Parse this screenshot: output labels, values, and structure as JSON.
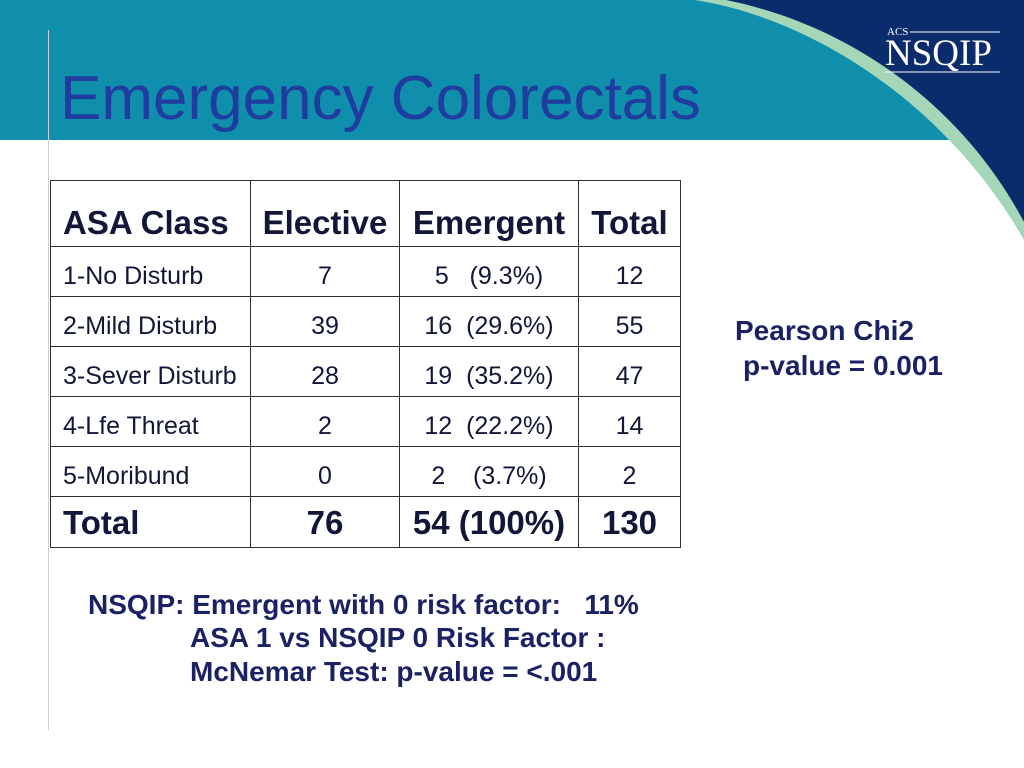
{
  "slide": {
    "title": "Emergency Colorectals"
  },
  "logo": {
    "org": "ACS",
    "name": "NSQIP"
  },
  "colors": {
    "header_band": "#0f8fac",
    "swoosh_navy": "#0b2c6c",
    "swoosh_mint": "#a5d6b8",
    "title": "#1f3c9e",
    "text": "#121638",
    "accent_text": "#1a2264"
  },
  "table": {
    "headers": {
      "asa": "ASA Class",
      "elective": "Elective",
      "emergent": "Emergent",
      "total": "Total"
    },
    "rows": [
      {
        "asa": "1-No Disturb",
        "elective": "7",
        "emergent": "5   (9.3%)",
        "total": "12"
      },
      {
        "asa": "2-Mild Disturb",
        "elective": "39",
        "emergent": "16  (29.6%)",
        "total": "55"
      },
      {
        "asa": "3-Sever Disturb",
        "elective": "28",
        "emergent": "19  (35.2%)",
        "total": "47"
      },
      {
        "asa": "4-Lfe Threat",
        "elective": "2",
        "emergent": "12  (22.2%)",
        "total": "14"
      },
      {
        "asa": "5-Moribund",
        "elective": "0",
        "emergent": "2    (3.7%)",
        "total": "2"
      }
    ],
    "totals": {
      "label": "Total",
      "elective": "76",
      "emergent": "54 (100%)",
      "total": "130"
    }
  },
  "stats": {
    "test": "Pearson Chi2",
    "p_value": "p-value = 0.001"
  },
  "notes": {
    "line1": "NSQIP: Emergent with 0 risk factor:   11%",
    "line2": "ASA 1 vs NSQIP 0 Risk Factor :",
    "line3": "McNemar Test: p-value = <.001"
  }
}
